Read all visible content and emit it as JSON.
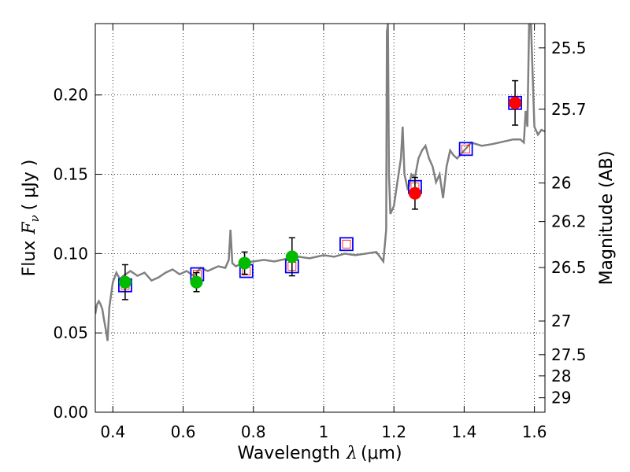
{
  "chart_data": {
    "type": "scatter",
    "xlabel": "Wavelength",
    "xlabel_symbol": "λ",
    "xlabel_unit": "(μm)",
    "ylabel": "Flux",
    "ylabel_symbol": "F",
    "ylabel_sub": "ν",
    "ylabel_unit": "( μJy )",
    "y2label": "Magnitude (AB)",
    "xlim": [
      0.35,
      1.63
    ],
    "ylim": [
      0.0,
      0.245
    ],
    "grid": true,
    "grid_style": "dotted",
    "x_ticks": [
      0.4,
      0.6,
      0.8,
      1.0,
      1.2,
      1.4,
      1.6
    ],
    "x_tick_labels": [
      "0.4",
      "0.6",
      "0.8",
      "1",
      "1.2",
      "1.4",
      "1.6"
    ],
    "y_ticks": [
      0.0,
      0.05,
      0.1,
      0.15,
      0.2
    ],
    "y_tick_labels": [
      "0.00",
      "0.05",
      "0.10",
      "0.15",
      "0.20"
    ],
    "y2_ticks": [
      {
        "label": "25.5",
        "flux": 0.2297
      },
      {
        "label": "25.7",
        "flux": 0.191
      },
      {
        "label": "26",
        "flux": 0.1445
      },
      {
        "label": "26.2",
        "flux": 0.1202
      },
      {
        "label": "26.5",
        "flux": 0.0912
      },
      {
        "label": "27",
        "flux": 0.0575
      },
      {
        "label": "27.5",
        "flux": 0.0363
      },
      {
        "label": "28",
        "flux": 0.0229
      },
      {
        "label": "29",
        "flux": 0.0091
      }
    ],
    "colors": {
      "spectrum": "#808080",
      "optical_points": "#00bb00",
      "ir_points": "#ff0000",
      "model_boxes": "#0000ff",
      "model_box_inner": "#ff0000",
      "errorbars": "#000000",
      "grid": "#000000"
    },
    "spectrum": {
      "name": "",
      "x": [
        0.35,
        0.355,
        0.36,
        0.365,
        0.37,
        0.375,
        0.38,
        0.385,
        0.39,
        0.4,
        0.41,
        0.42,
        0.43,
        0.45,
        0.47,
        0.49,
        0.51,
        0.53,
        0.55,
        0.57,
        0.59,
        0.61,
        0.63,
        0.65,
        0.67,
        0.7,
        0.72,
        0.73,
        0.735,
        0.74,
        0.75,
        0.77,
        0.8,
        0.83,
        0.86,
        0.9,
        0.93,
        0.96,
        1.0,
        1.03,
        1.06,
        1.09,
        1.12,
        1.15,
        1.17,
        1.178,
        1.18,
        1.183,
        1.186,
        1.19,
        1.2,
        1.21,
        1.22,
        1.225,
        1.23,
        1.24,
        1.25,
        1.26,
        1.27,
        1.28,
        1.29,
        1.3,
        1.31,
        1.32,
        1.33,
        1.34,
        1.35,
        1.36,
        1.37,
        1.38,
        1.4,
        1.42,
        1.45,
        1.48,
        1.5,
        1.52,
        1.54,
        1.56,
        1.57,
        1.575,
        1.58,
        1.585,
        1.59,
        1.6,
        1.61,
        1.62,
        1.63
      ],
      "y": [
        0.062,
        0.068,
        0.07,
        0.068,
        0.065,
        0.058,
        0.052,
        0.045,
        0.066,
        0.082,
        0.088,
        0.084,
        0.086,
        0.089,
        0.086,
        0.088,
        0.083,
        0.085,
        0.088,
        0.09,
        0.087,
        0.089,
        0.086,
        0.091,
        0.089,
        0.092,
        0.091,
        0.096,
        0.115,
        0.094,
        0.092,
        0.094,
        0.095,
        0.096,
        0.095,
        0.097,
        0.098,
        0.097,
        0.099,
        0.098,
        0.1,
        0.099,
        0.1,
        0.101,
        0.095,
        0.115,
        0.24,
        0.245,
        0.15,
        0.125,
        0.13,
        0.145,
        0.16,
        0.18,
        0.15,
        0.14,
        0.15,
        0.148,
        0.16,
        0.165,
        0.168,
        0.16,
        0.155,
        0.145,
        0.15,
        0.135,
        0.155,
        0.165,
        0.162,
        0.16,
        0.165,
        0.17,
        0.168,
        0.169,
        0.17,
        0.171,
        0.172,
        0.172,
        0.17,
        0.19,
        0.18,
        0.245,
        0.245,
        0.18,
        0.175,
        0.178,
        0.177
      ]
    },
    "series": [
      {
        "name": "",
        "color": "#00bb00",
        "x": [
          0.435,
          0.638,
          0.775,
          0.91
        ],
        "y": [
          0.082,
          0.082,
          0.094,
          0.098
        ],
        "yerr": [
          0.011,
          0.006,
          0.007,
          0.012
        ]
      },
      {
        "name": "",
        "color": "#ff0000",
        "x": [
          1.26,
          1.545
        ],
        "y": [
          0.138,
          0.195
        ],
        "yerr": [
          0.01,
          0.014
        ]
      }
    ],
    "model_boxes": {
      "x": [
        0.435,
        0.64,
        0.78,
        0.91,
        1.065,
        1.26,
        1.405,
        1.545
      ],
      "y": [
        0.08,
        0.087,
        0.089,
        0.092,
        0.106,
        0.142,
        0.166,
        0.195
      ]
    }
  }
}
